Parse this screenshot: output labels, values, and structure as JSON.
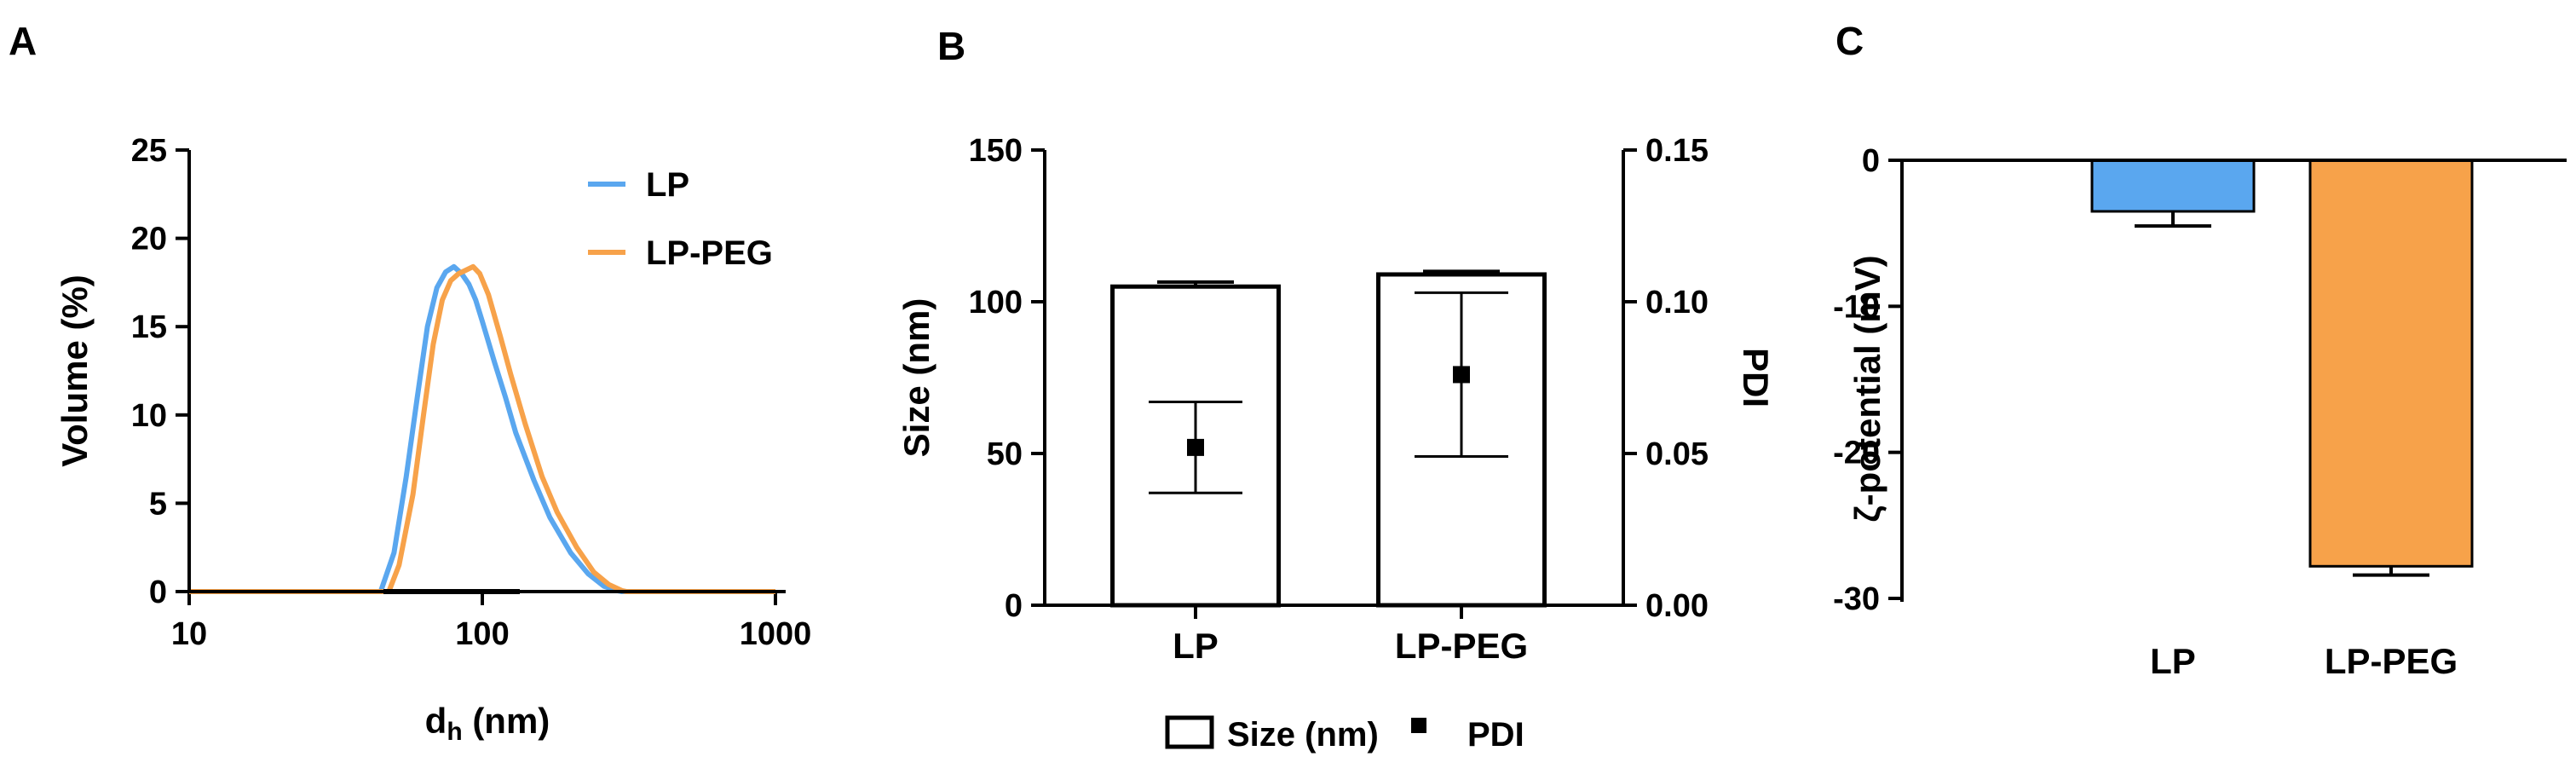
{
  "panels": {
    "a": "A",
    "b": "B",
    "c": "C"
  },
  "chart_data": [
    {
      "type": "line",
      "panel": "A",
      "xlabel_main": "d",
      "xlabel_sub": "h",
      "xlabel_rest": " (nm)",
      "ylabel": "Volume (%)",
      "xscale": "log",
      "xlim": [
        10,
        1000
      ],
      "ylim": [
        0,
        25
      ],
      "xticks": [
        10,
        100,
        1000
      ],
      "yticks": [
        0,
        5,
        10,
        15,
        20,
        25
      ],
      "legend_position": "top-right",
      "series": [
        {
          "name": "LP",
          "color": "#5aa7ef",
          "x": [
            10,
            45,
            50,
            55,
            60,
            65,
            70,
            75,
            80,
            85,
            90,
            95,
            100,
            110,
            120,
            130,
            150,
            170,
            200,
            230,
            260,
            290,
            300,
            1000
          ],
          "y": [
            0,
            0,
            2.2,
            6.5,
            11,
            15,
            17.2,
            18.1,
            18.4,
            18,
            17.4,
            16.5,
            15.3,
            13,
            11,
            9,
            6.3,
            4.2,
            2.2,
            1,
            0.3,
            0.05,
            0,
            0
          ]
        },
        {
          "name": "LP-PEG",
          "color": "#f7a24a",
          "x": [
            10,
            48,
            52,
            58,
            63,
            68,
            73,
            78,
            83,
            88,
            93,
            98,
            105,
            115,
            125,
            140,
            160,
            180,
            210,
            240,
            270,
            300,
            310,
            1000
          ],
          "y": [
            0,
            0,
            1.5,
            5.5,
            10,
            14,
            16.5,
            17.6,
            18,
            18.2,
            18.4,
            18,
            16.8,
            14.5,
            12.3,
            9.5,
            6.5,
            4.5,
            2.5,
            1.1,
            0.4,
            0.05,
            0,
            0
          ]
        }
      ]
    },
    {
      "type": "bar",
      "panel": "B",
      "categories": [
        "LP",
        "LP-PEG"
      ],
      "ylabel": "Size (nm)",
      "y2label": "PDI",
      "ylim": [
        0,
        150
      ],
      "y2lim": [
        0,
        0.15
      ],
      "yticks": [
        0,
        50,
        100,
        150
      ],
      "y2ticks": [
        "0.00",
        "0.05",
        "0.10",
        "0.15"
      ],
      "series": [
        {
          "name": "Size (nm)",
          "axis": "left",
          "values": [
            105,
            109
          ],
          "errors": [
            1.5,
            1.0
          ]
        },
        {
          "name": "PDI",
          "axis": "right",
          "values": [
            0.052,
            0.076
          ],
          "errors": [
            0.015,
            0.027
          ]
        }
      ],
      "legend_position": "bottom"
    },
    {
      "type": "bar",
      "panel": "C",
      "categories": [
        "LP",
        "LP-PEG"
      ],
      "ylabel": "ζ-potential (mV)",
      "ylim": [
        -30,
        0
      ],
      "yticks": [
        0,
        -10,
        -20,
        -30
      ],
      "series": [
        {
          "values": [
            -3.5,
            -27.8
          ],
          "errors": [
            1.0,
            0.6
          ],
          "colors": [
            "#5aa7ef",
            "#f7a24a"
          ]
        }
      ]
    }
  ]
}
